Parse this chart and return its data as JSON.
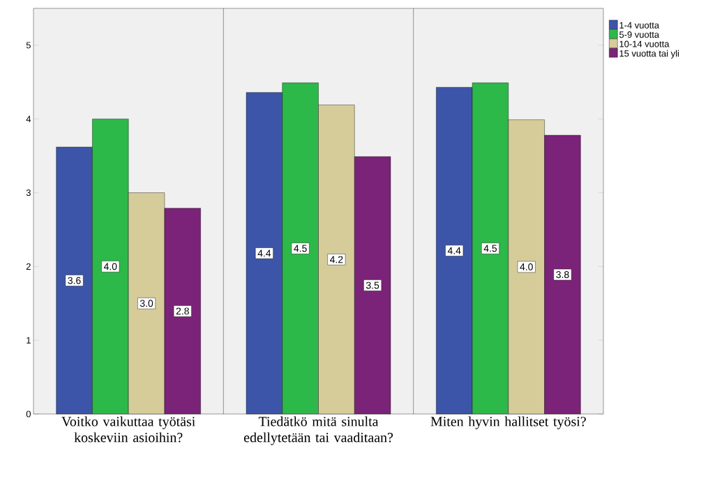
{
  "chart_data": {
    "type": "bar",
    "categories": [
      "Voitko vaikuttaa työtäsi koskeviin asioihin?",
      "Tiedätkö mitä sinulta edellytetään tai vaaditaan?",
      "Miten hyvin hallitset työsi?"
    ],
    "series": [
      {
        "name": "1-4 vuotta",
        "color": "#3c55a8",
        "values": [
          3.62,
          4.36,
          4.43
        ],
        "value_labels": [
          "3.6",
          "4.4",
          "4.4"
        ]
      },
      {
        "name": "5-9 vuotta",
        "color": "#2db84a",
        "values": [
          4.0,
          4.49,
          4.49
        ],
        "value_labels": [
          "4.0",
          "4.5",
          "4.5"
        ]
      },
      {
        "name": "10-14 vuotta",
        "color": "#d6cc9a",
        "values": [
          3.0,
          4.19,
          3.99
        ],
        "value_labels": [
          "3.0",
          "4.2",
          "4.0"
        ]
      },
      {
        "name": "15 vuotta tai yli",
        "color": "#7b2378",
        "values": [
          2.79,
          3.49,
          3.78
        ],
        "value_labels": [
          "2.8",
          "3.5",
          "3.8"
        ]
      }
    ],
    "ylim": [
      0,
      5.5
    ],
    "yticks": [
      0,
      1,
      2,
      3,
      4,
      5
    ],
    "grid": "x",
    "legend": "top right"
  }
}
